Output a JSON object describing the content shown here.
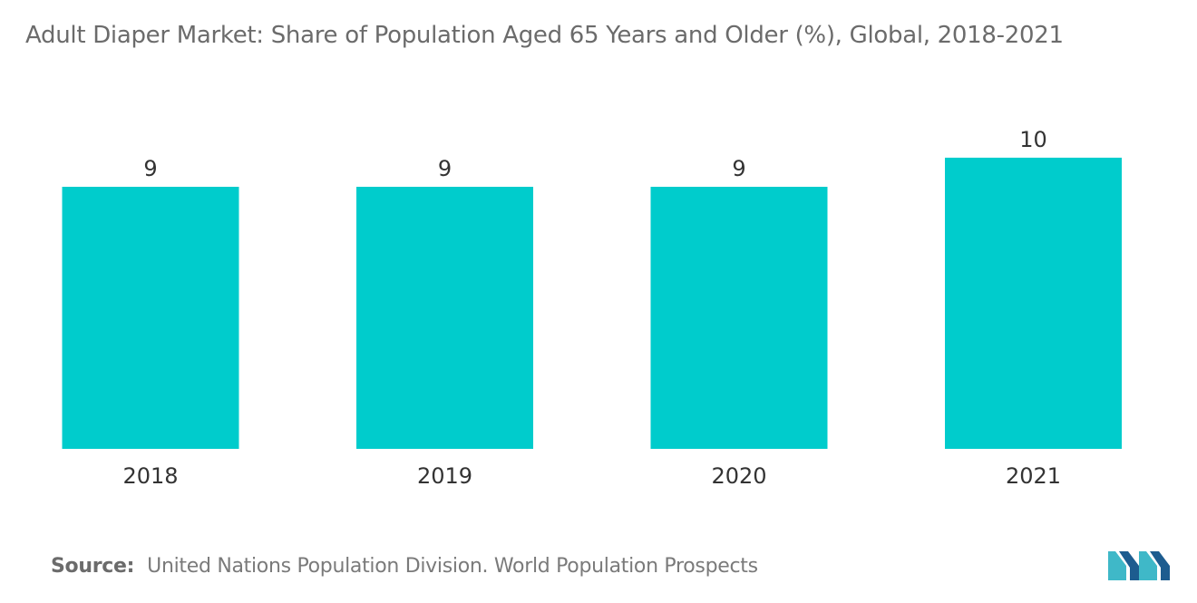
{
  "title": "Adult Diaper Market: Share of Population Aged 65 Years and Older (%), Global, 2018-2021",
  "source": {
    "label": "Source:",
    "text": "United Nations Population Division. World Population Prospects"
  },
  "logo_icon": "mordor-intelligence-logo-icon",
  "colors": {
    "bar": "#00cccc",
    "text": "#333333",
    "title": "#6b6b6b",
    "logo_dark": "#1d5c8f",
    "logo_light": "#3fb8c8"
  },
  "chart_data": {
    "type": "bar",
    "categories": [
      "2018",
      "2019",
      "2020",
      "2021"
    ],
    "values": [
      9,
      9,
      9,
      10
    ],
    "data_labels": [
      "9",
      "9",
      "9",
      "10"
    ],
    "title": "Adult Diaper Market: Share of Population Aged 65 Years and Older (%), Global, 2018-2021",
    "ylim": [
      0,
      10.9
    ],
    "grid": false,
    "legend": "none"
  }
}
